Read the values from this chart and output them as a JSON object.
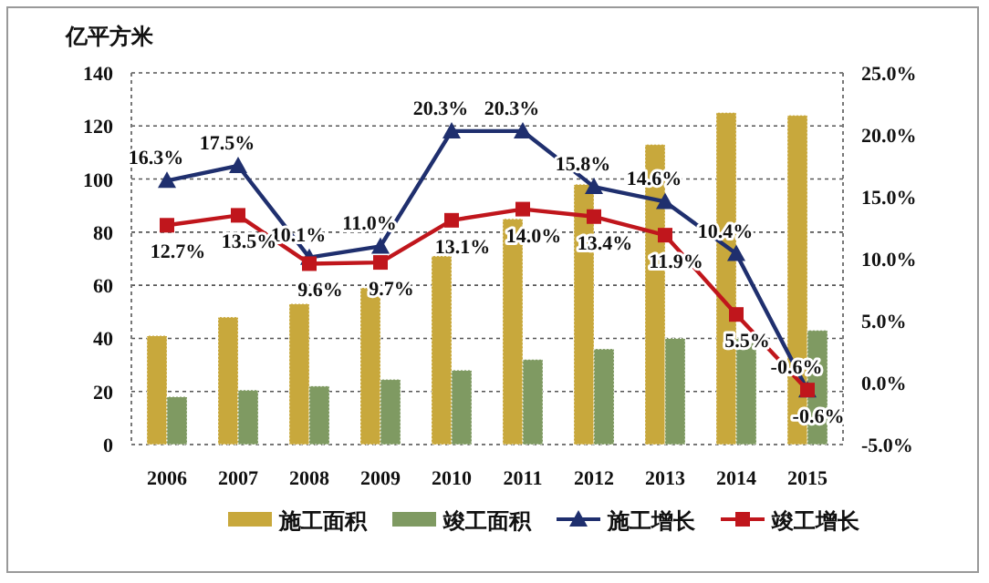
{
  "chart_data": {
    "type": "bar",
    "ylabel": "亿平方米",
    "categories": [
      "2006",
      "2007",
      "2008",
      "2009",
      "2010",
      "2011",
      "2012",
      "2013",
      "2014",
      "2015"
    ],
    "series": [
      {
        "name": "施工面积",
        "color": "#c8a83c",
        "values": [
          41,
          48,
          53,
          59,
          71,
          85,
          98,
          113,
          125,
          124
        ]
      },
      {
        "name": "竣工面积",
        "color": "#7f9a62",
        "values": [
          18,
          20.5,
          22,
          24.5,
          28,
          32,
          36,
          40,
          40,
          43
        ]
      },
      {
        "name": "施工增长",
        "type": "line",
        "axis": "y2",
        "color": "#1f2f6e",
        "marker": "triangle",
        "values": [
          16.3,
          17.5,
          10.1,
          11.0,
          20.3,
          20.3,
          15.8,
          14.6,
          10.4,
          -0.6
        ],
        "value_labels": [
          "16.3%",
          "17.5%",
          "10.1%",
          "11.0%",
          "20.3%",
          "20.3%",
          "15.8%",
          "14.6%",
          "10.4%",
          "-0.6%"
        ]
      },
      {
        "name": "竣工增长",
        "type": "line",
        "axis": "y2",
        "color": "#c0161c",
        "marker": "square",
        "values": [
          12.7,
          13.5,
          9.6,
          9.7,
          13.1,
          14.0,
          13.4,
          11.9,
          5.5,
          -0.6
        ],
        "value_labels": [
          "12.7%",
          "13.5%",
          "9.6%",
          "9.7%",
          "13.1%",
          "14.0%",
          "13.4%",
          "11.9%",
          "5.5%",
          "-0.6%"
        ]
      }
    ],
    "ylim": [
      0,
      140
    ],
    "yticks": [
      0,
      20,
      40,
      60,
      80,
      100,
      120,
      140
    ],
    "y2lim": [
      -5,
      25
    ],
    "y2ticks": [
      {
        "value": -5,
        "label": "-5.0%"
      },
      {
        "value": 0,
        "label": "0.0%"
      },
      {
        "value": 5,
        "label": "5.0%"
      },
      {
        "value": 10,
        "label": "10.0%"
      },
      {
        "value": 15,
        "label": "15.0%"
      },
      {
        "value": 20,
        "label": "20.0%"
      },
      {
        "value": 25,
        "label": "25.0%"
      }
    ],
    "grid": "y",
    "legend": "bottom"
  }
}
